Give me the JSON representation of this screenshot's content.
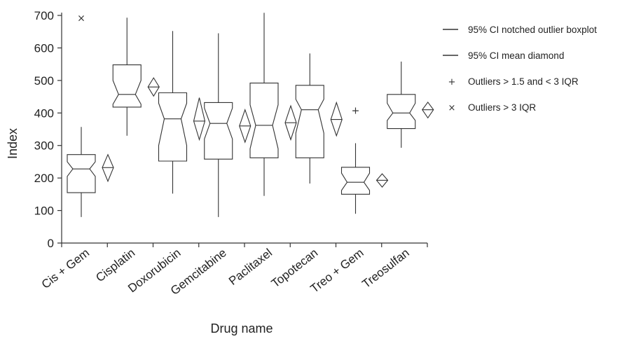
{
  "chart_data": {
    "type": "boxplot",
    "xlabel": "Drug name",
    "ylabel": "Index",
    "ylim": [
      0,
      700
    ],
    "yticks": [
      0,
      100,
      200,
      300,
      400,
      500,
      600,
      700
    ],
    "categories": [
      "Cis + Gem",
      "Cisplatin",
      "Doxorubicin",
      "Gemcitabine",
      "Paclitaxel",
      "Topotecan",
      "Treo + Gem",
      "Treosulfan"
    ],
    "boxes": [
      {
        "name": "Cis + Gem",
        "whisker_low": 80,
        "q1": 155,
        "median": 228,
        "q3": 272,
        "whisker_high": 357,
        "notch_low": 205,
        "notch_high": 250,
        "mean": 232,
        "mean_ci_low": 190,
        "mean_ci_high": 272,
        "outliers_mild": [],
        "outliers_extreme": [
          692
        ]
      },
      {
        "name": "Cisplatin",
        "whisker_low": 330,
        "q1": 418,
        "median": 457,
        "q3": 548,
        "whisker_high": 693,
        "notch_low": 427,
        "notch_high": 500,
        "mean": 480,
        "mean_ci_low": 452,
        "mean_ci_high": 508,
        "outliers_mild": [],
        "outliers_extreme": []
      },
      {
        "name": "Doxorubicin",
        "whisker_low": 152,
        "q1": 252,
        "median": 382,
        "q3": 462,
        "whisker_high": 652,
        "notch_low": 300,
        "notch_high": 430,
        "mean": 375,
        "mean_ci_low": 318,
        "mean_ci_high": 447,
        "outliers_mild": [],
        "outliers_extreme": []
      },
      {
        "name": "Gemcitabine",
        "whisker_low": 80,
        "q1": 258,
        "median": 368,
        "q3": 432,
        "whisker_high": 645,
        "notch_low": 320,
        "notch_high": 415,
        "mean": 360,
        "mean_ci_low": 310,
        "mean_ci_high": 410,
        "outliers_mild": [],
        "outliers_extreme": []
      },
      {
        "name": "Paclitaxel",
        "whisker_low": 145,
        "q1": 262,
        "median": 362,
        "q3": 492,
        "whisker_high": 708,
        "notch_low": 290,
        "notch_high": 425,
        "mean": 370,
        "mean_ci_low": 318,
        "mean_ci_high": 422,
        "outliers_mild": [],
        "outliers_extreme": []
      },
      {
        "name": "Topotecan",
        "whisker_low": 183,
        "q1": 262,
        "median": 410,
        "q3": 485,
        "whisker_high": 583,
        "notch_low": 338,
        "notch_high": 442,
        "mean": 380,
        "mean_ci_low": 330,
        "mean_ci_high": 432,
        "outliers_mild": [],
        "outliers_extreme": []
      },
      {
        "name": "Treo + Gem",
        "whisker_low": 90,
        "q1": 150,
        "median": 187,
        "q3": 233,
        "whisker_high": 307,
        "notch_low": 162,
        "notch_high": 215,
        "mean": 193,
        "mean_ci_low": 172,
        "mean_ci_high": 213,
        "outliers_mild": [
          408
        ],
        "outliers_extreme": []
      },
      {
        "name": "Treosulfan",
        "whisker_low": 293,
        "q1": 352,
        "median": 400,
        "q3": 457,
        "whisker_high": 558,
        "notch_low": 377,
        "notch_high": 430,
        "mean": 410,
        "mean_ci_low": 385,
        "mean_ci_high": 433,
        "outliers_mild": [],
        "outliers_extreme": []
      }
    ],
    "legend": [
      {
        "label": "95% CI notched outlier boxplot",
        "symbol": "line"
      },
      {
        "label": "95% CI mean diamond",
        "symbol": "line"
      },
      {
        "label": "Outliers > 1.5 and < 3 IQR",
        "symbol": "+"
      },
      {
        "label": "Outliers > 3 IQR",
        "symbol": "×"
      }
    ],
    "legend_position": "right",
    "grid": false
  }
}
